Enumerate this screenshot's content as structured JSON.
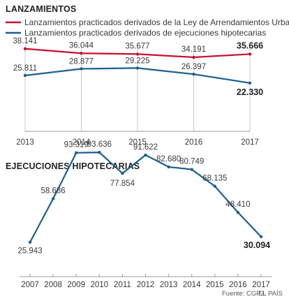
{
  "chart_data": [
    {
      "type": "line",
      "title": "LANZAMIENTOS",
      "categories": [
        "2013",
        "2014",
        "2015",
        "2016",
        "2017"
      ],
      "ylim": [
        0,
        40000
      ],
      "grid": "vertical",
      "legend_placement": "top",
      "series": [
        {
          "name": "Lanzamientos practicados derivados de la Ley de Arrendamientos Urbanos",
          "color": "#c8102e",
          "values": [
            38141,
            36044,
            35677,
            34191,
            35666
          ],
          "labels": [
            "38.141",
            "36.044",
            "35.677",
            "34.191",
            "35.666"
          ]
        },
        {
          "name": "Lanzamientos practicados derivados de ejecuciones hipotecarias",
          "color": "#1c5f8f",
          "values": [
            25811,
            28877,
            29225,
            26397,
            22330
          ],
          "labels": [
            "25.811",
            "28.877",
            "29.225",
            "26.397",
            "22.330"
          ]
        }
      ]
    },
    {
      "type": "line",
      "title": "EJECUCIONES HIPOTECARIAS",
      "categories": [
        "2007",
        "2008",
        "2009",
        "2010",
        "2011",
        "2012",
        "2013",
        "2014",
        "2015",
        "2016",
        "2017"
      ],
      "ylim": [
        0,
        100000
      ],
      "grid": "none",
      "series": [
        {
          "color": "#1c5f8f",
          "values": [
            25943,
            58686,
            93319,
            93636,
            77854,
            91622,
            82680,
            80749,
            68135,
            48410,
            30094
          ],
          "labels": [
            "25.943",
            "58.686",
            "93.319",
            "93.636",
            "77.854",
            "91.622",
            "82.680",
            "80.749",
            "68.135",
            "48.410",
            "30.094"
          ]
        }
      ]
    }
  ],
  "footer": {
    "source": "Fuente: CGPJ.",
    "brand": "EL PAÍS"
  }
}
